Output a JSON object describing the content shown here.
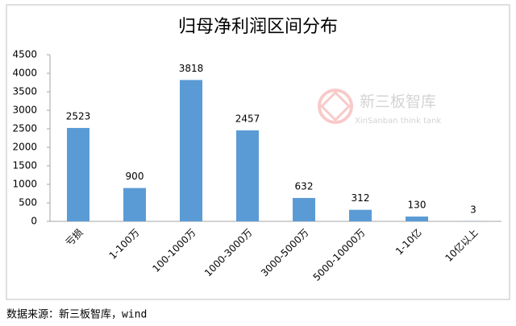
{
  "chart_data": {
    "type": "bar",
    "title": "归母净利润区间分布",
    "categories": [
      "亏损",
      "1-100万",
      "100-1000万",
      "1000-3000万",
      "3000-5000万",
      "5000-10000万",
      "1-10亿",
      "10亿以上"
    ],
    "values": [
      2523,
      900,
      3818,
      2457,
      632,
      312,
      130,
      3
    ],
    "color": "#5b9bd5",
    "ylim": [
      0,
      4500
    ],
    "yticks": [
      0,
      500,
      1000,
      1500,
      2000,
      2500,
      3000,
      3500,
      4000,
      4500
    ],
    "grid": false,
    "watermark": {
      "title": "新三板智库",
      "subtitle": "XinSanban think tank"
    }
  },
  "source": "数据来源：新三板智库，wind"
}
